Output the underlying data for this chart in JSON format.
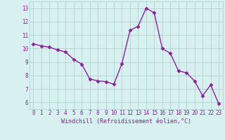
{
  "x": [
    0,
    1,
    2,
    3,
    4,
    5,
    6,
    7,
    8,
    9,
    10,
    11,
    12,
    13,
    14,
    15,
    16,
    17,
    18,
    19,
    20,
    21,
    22,
    23
  ],
  "y": [
    10.35,
    10.2,
    10.1,
    9.9,
    9.75,
    9.2,
    8.85,
    7.75,
    7.6,
    7.55,
    7.35,
    8.9,
    11.35,
    11.65,
    13.0,
    12.65,
    10.0,
    9.65,
    8.35,
    8.2,
    7.6,
    6.5,
    7.3,
    5.9
  ],
  "line_color": "#882299",
  "marker": "D",
  "marker_size": 2.5,
  "linewidth": 1.0,
  "bg_color": "#d8f0f0",
  "grid_color": "#aacccc",
  "xlabel": "Windchill (Refroidissement éolien,°C)",
  "xlabel_color": "#882299",
  "tick_color": "#882299",
  "ylim": [
    5.5,
    13.5
  ],
  "yticks": [
    6,
    7,
    8,
    9,
    10,
    11,
    12,
    13
  ],
  "xlim": [
    -0.5,
    23.5
  ],
  "xticks": [
    0,
    1,
    2,
    3,
    4,
    5,
    6,
    7,
    8,
    9,
    10,
    11,
    12,
    13,
    14,
    15,
    16,
    17,
    18,
    19,
    20,
    21,
    22,
    23
  ],
  "tick_fontsize": 5.5,
  "xlabel_fontsize": 6.0
}
